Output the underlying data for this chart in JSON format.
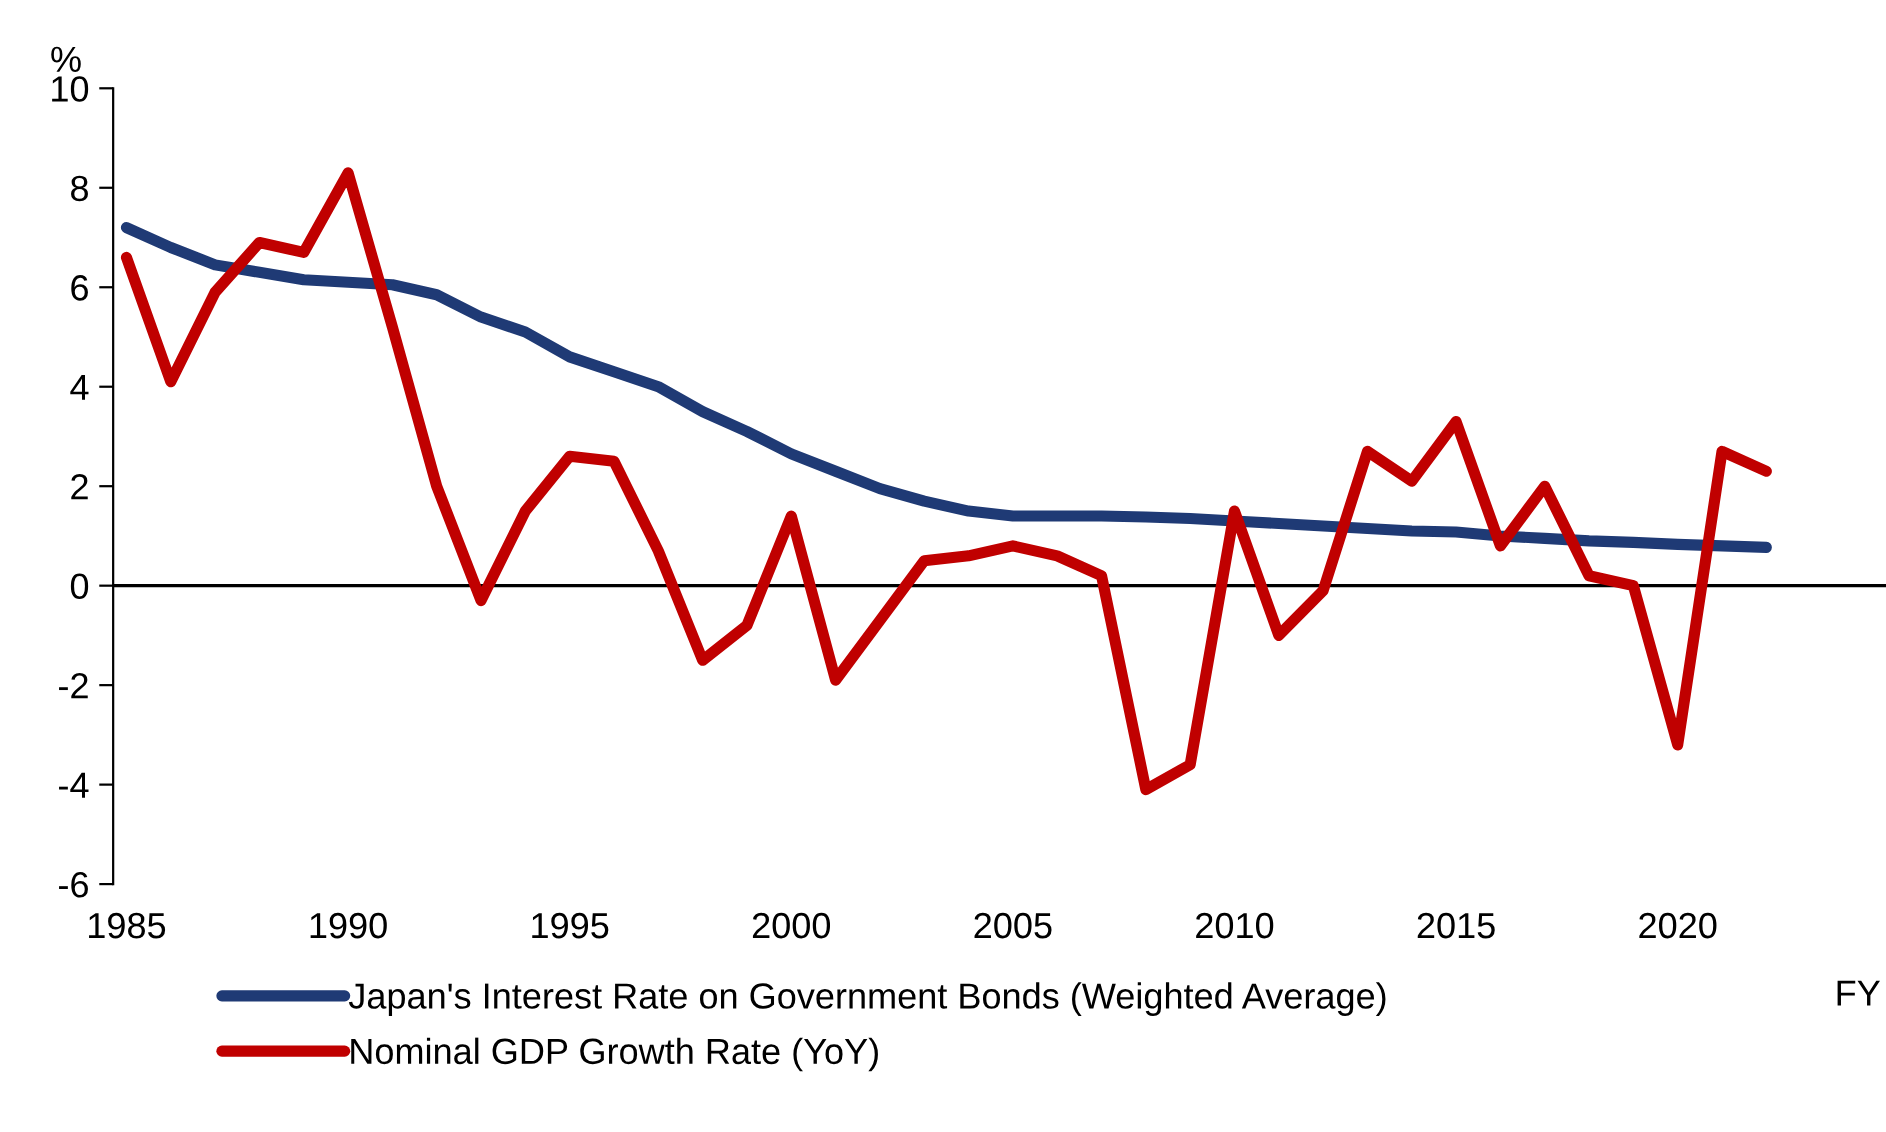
{
  "chart_data": {
    "type": "line",
    "ylabel": "%",
    "xlabel": "FY",
    "x": [
      1985,
      1986,
      1987,
      1988,
      1989,
      1990,
      1991,
      1992,
      1993,
      1994,
      1995,
      1996,
      1997,
      1998,
      1999,
      2000,
      2001,
      2002,
      2003,
      2004,
      2005,
      2006,
      2007,
      2008,
      2009,
      2010,
      2011,
      2012,
      2013,
      2014,
      2015,
      2016,
      2017,
      2018,
      2019,
      2020,
      2021,
      2022
    ],
    "series": [
      {
        "name": "Japan's Interest Rate on Government Bonds (Weighted Average)",
        "color": "#1f3a75",
        "values": [
          7.2,
          6.8,
          6.45,
          6.3,
          6.15,
          6.1,
          6.05,
          5.85,
          5.4,
          5.1,
          4.6,
          4.3,
          4.0,
          3.5,
          3.1,
          2.65,
          2.3,
          1.95,
          1.7,
          1.5,
          1.4,
          1.4,
          1.4,
          1.38,
          1.35,
          1.3,
          1.25,
          1.2,
          1.15,
          1.1,
          1.08,
          1.0,
          0.95,
          0.9,
          0.87,
          0.83,
          0.8,
          0.77
        ]
      },
      {
        "name": "Nominal GDP Growth Rate (YoY)",
        "color": "#c00000",
        "values": [
          6.6,
          4.1,
          5.9,
          6.9,
          6.7,
          8.3,
          5.2,
          2.0,
          -0.3,
          1.5,
          2.6,
          2.5,
          0.7,
          -1.5,
          -0.8,
          1.4,
          -1.9,
          -0.7,
          0.5,
          0.6,
          0.8,
          0.6,
          0.2,
          -4.1,
          -3.6,
          1.5,
          -1.0,
          -0.1,
          2.7,
          2.1,
          3.3,
          0.8,
          2.0,
          0.2,
          0.0,
          -3.2,
          2.7,
          2.3
        ]
      }
    ],
    "xlim": [
      1984.7,
      2024.7
    ],
    "xticks": [
      1985,
      1990,
      1995,
      2000,
      2005,
      2010,
      2015,
      2020
    ],
    "ylim": [
      -6,
      10
    ],
    "yticks": [
      -6,
      -4,
      -2,
      0,
      2,
      4,
      6,
      8,
      10
    ],
    "ref_lines": [
      {
        "axis": "y",
        "value": 0,
        "color": "#000000"
      }
    ],
    "grid": false,
    "legend": "bottom",
    "marker": "none",
    "line_style": "solid"
  }
}
